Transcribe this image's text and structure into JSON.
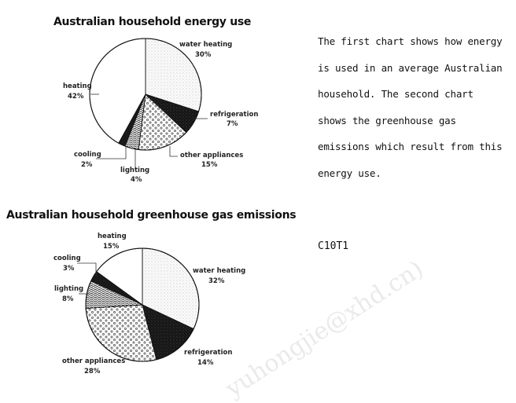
{
  "chart_data": [
    {
      "type": "pie",
      "title": "Australian household energy use",
      "slices": [
        {
          "label": "water heating",
          "value": 30,
          "value_label": "30%",
          "fill": "light-dots"
        },
        {
          "label": "refrigeration",
          "value": 7,
          "value_label": "7%",
          "fill": "black"
        },
        {
          "label": "other appliances",
          "value": 15,
          "value_label": "15%",
          "fill": "circles"
        },
        {
          "label": "lighting",
          "value": 4,
          "value_label": "4%",
          "fill": "squiggle"
        },
        {
          "label": "cooling",
          "value": 2,
          "value_label": "2%",
          "fill": "solid-dark"
        },
        {
          "label": "heating",
          "value": 42,
          "value_label": "42%",
          "fill": "white"
        }
      ]
    },
    {
      "type": "pie",
      "title": "Australian household greenhouse gas emissions",
      "slices": [
        {
          "label": "water heating",
          "value": 32,
          "value_label": "32%",
          "fill": "light-dots"
        },
        {
          "label": "refrigeration",
          "value": 14,
          "value_label": "14%",
          "fill": "black"
        },
        {
          "label": "other appliances",
          "value": 28,
          "value_label": "28%",
          "fill": "circles"
        },
        {
          "label": "lighting",
          "value": 8,
          "value_label": "8%",
          "fill": "squiggle"
        },
        {
          "label": "cooling",
          "value": 3,
          "value_label": "3%",
          "fill": "solid-dark"
        },
        {
          "label": "heating",
          "value": 15,
          "value_label": "15%",
          "fill": "white"
        }
      ]
    }
  ],
  "description_lines": [
    "The first chart shows how energy",
    "is used in an average Australian",
    "household. The second chart",
    "shows the greenhouse gas",
    "emissions which result from this",
    "energy use."
  ],
  "code": "C10T1",
  "watermark": "yuhongjie@xhd.cn)"
}
